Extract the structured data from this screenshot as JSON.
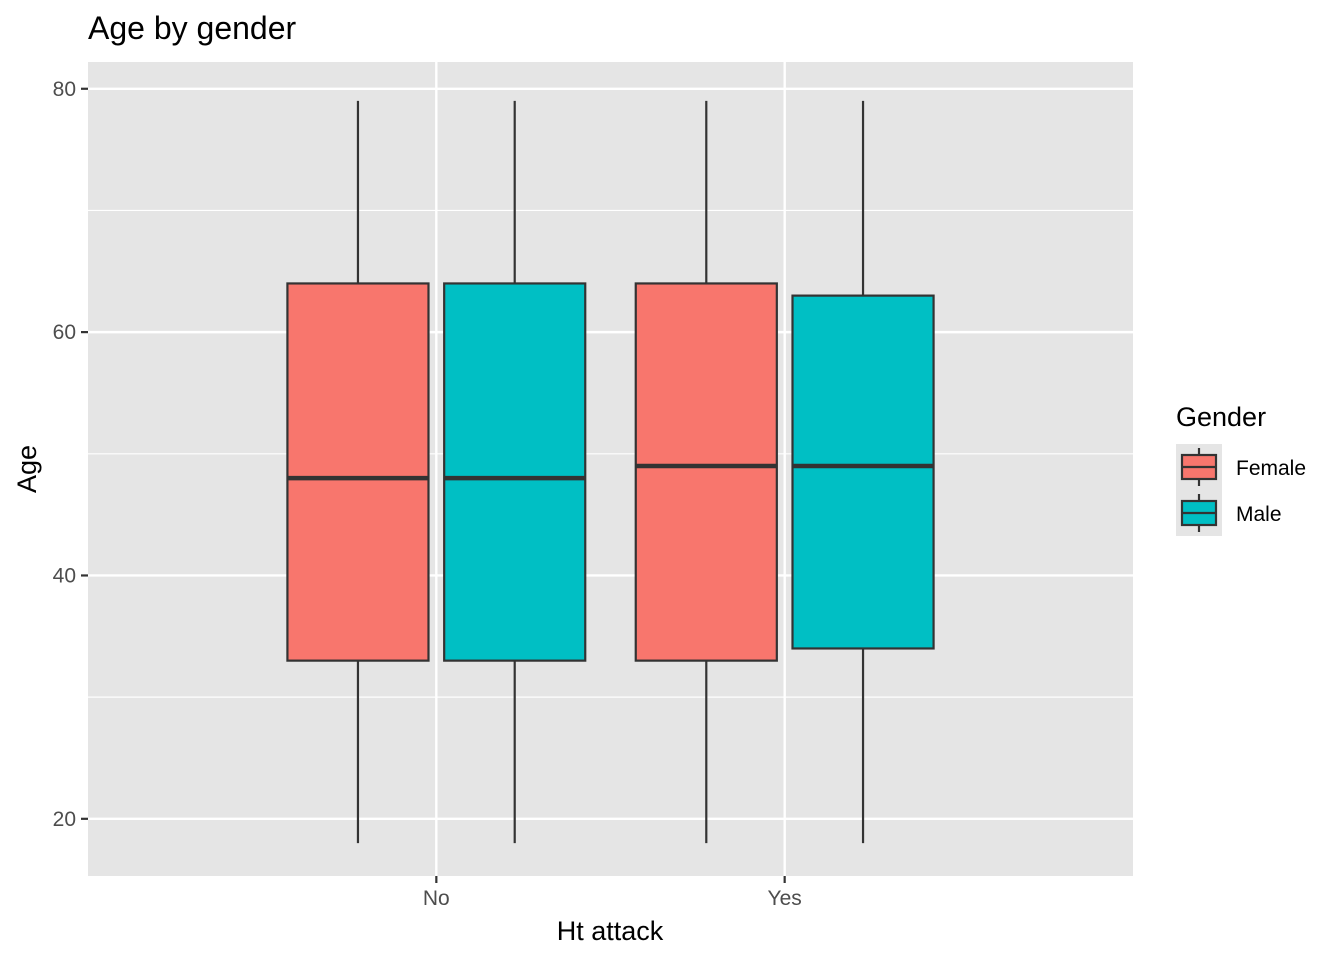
{
  "chart_data": {
    "type": "boxplot",
    "title": "Age by gender",
    "xlabel": "Ht attack",
    "ylabel": "Age",
    "categories": [
      "No",
      "Yes"
    ],
    "ylim": [
      15.3,
      82.2
    ],
    "yticks": [
      20,
      40,
      60,
      80
    ],
    "grid": true,
    "legend": {
      "title": "Gender",
      "position": "right"
    },
    "series": [
      {
        "name": "Female",
        "color": "#F8766D",
        "boxes": [
          {
            "category": "No",
            "min": 18,
            "q1": 33,
            "median": 48,
            "q3": 64,
            "max": 79
          },
          {
            "category": "Yes",
            "min": 18,
            "q1": 33,
            "median": 49,
            "q3": 64,
            "max": 79
          }
        ]
      },
      {
        "name": "Male",
        "color": "#00BFC4",
        "boxes": [
          {
            "category": "No",
            "min": 18,
            "q1": 33,
            "median": 48,
            "q3": 64,
            "max": 79
          },
          {
            "category": "Yes",
            "min": 18,
            "q1": 34,
            "median": 49,
            "q3": 63,
            "max": 79
          }
        ]
      }
    ],
    "colors": {
      "panel": "#E5E5E5",
      "grid": "#FFFFFF",
      "outline": "#333333"
    }
  }
}
